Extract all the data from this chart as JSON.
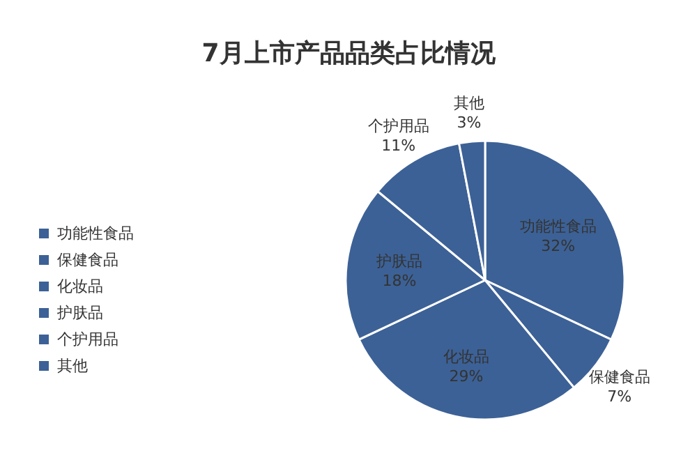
{
  "chart_data": {
    "type": "pie",
    "title": "7月上市产品品类占比情况",
    "categories": [
      "功能性食品",
      "保健食品",
      "化妆品",
      "护肤品",
      "个护用品",
      "其他"
    ],
    "values": [
      32,
      7,
      29,
      18,
      11,
      3
    ],
    "value_labels": [
      "32%",
      "7%",
      "29%",
      "18%",
      "11%",
      "3%"
    ],
    "colors": [
      "#3c6196",
      "#3c6196",
      "#3c6196",
      "#3c6196",
      "#3c6196",
      "#3c6196"
    ],
    "legend": "left"
  }
}
